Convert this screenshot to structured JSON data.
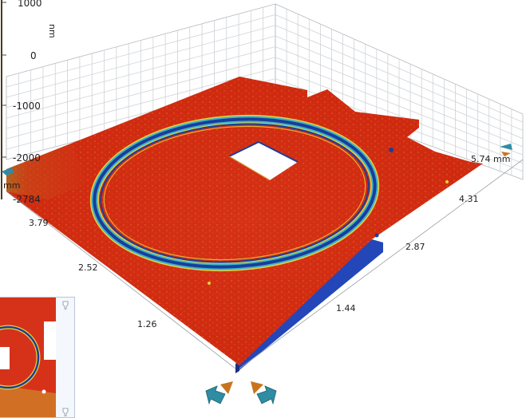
{
  "viewer": {
    "z_axis": {
      "unit": "nm",
      "ticks": [
        {
          "label": "1000",
          "value": 1000
        },
        {
          "label": "0",
          "value": 0
        },
        {
          "label": "-1000",
          "value": -1000
        },
        {
          "label": "-2000",
          "value": -2000
        }
      ],
      "min_label": "-2784"
    },
    "x_axis": {
      "unit": "mm",
      "ticks": [
        "1.26",
        "2.52",
        "3.79"
      ]
    },
    "y_axis": {
      "unit": "5.74 mm",
      "ticks": [
        "1.44",
        "2.87",
        "4.31"
      ]
    },
    "colors": {
      "surface": "#d42a12",
      "surface_dark": "#b81d0c",
      "ring_blue": "#1a3d9c",
      "ring_cyan": "#3fb4c8",
      "ring_yellow": "#e7d13a",
      "edge_blue": "#2346b8",
      "grid": "#cfd2d6",
      "arrow_teal": "#2f8ca3",
      "arrow_orange": "#c8741e"
    },
    "controls": {
      "rotate_left_icon": "rotate-left-arrow-icon",
      "rotate_right_icon": "rotate-right-arrow-icon",
      "tilt_icon": "tilt-arrow-icon"
    }
  },
  "thumbnail": {
    "pin_top_icon": "pin-icon",
    "pin_bottom_icon": "pin-icon"
  }
}
